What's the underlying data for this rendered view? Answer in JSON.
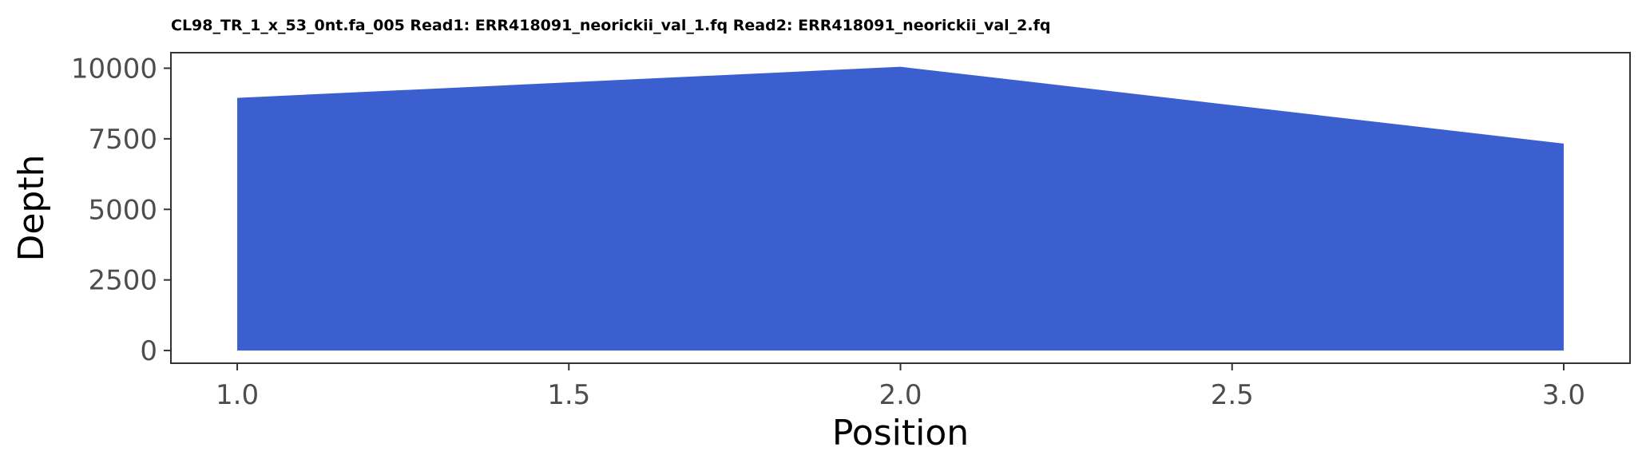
{
  "chart_data": {
    "type": "area",
    "title": "CL98_TR_1_x_53_0nt.fa_005 Read1: ERR418091_neorickii_val_1.fq Read2: ERR418091_neorickii_val_2.fq",
    "xlabel": "Position",
    "ylabel": "Depth",
    "x": [
      1.0,
      2.0,
      3.0
    ],
    "y": [
      8950,
      10050,
      7330
    ],
    "xlim": [
      0.9,
      3.1
    ],
    "ylim": [
      -450,
      10550
    ],
    "xticks": [
      1.0,
      1.5,
      2.0,
      2.5,
      3.0
    ],
    "xtick_labels": [
      "1.0",
      "1.5",
      "2.0",
      "2.5",
      "3.0"
    ],
    "yticks": [
      0,
      2500,
      5000,
      7500,
      10000
    ],
    "ytick_labels": [
      "0",
      "2500",
      "5000",
      "7500",
      "10000"
    ],
    "fill_color": "#3b5fce",
    "panel_border_color": "#333333",
    "grid": false,
    "legend": false
  }
}
